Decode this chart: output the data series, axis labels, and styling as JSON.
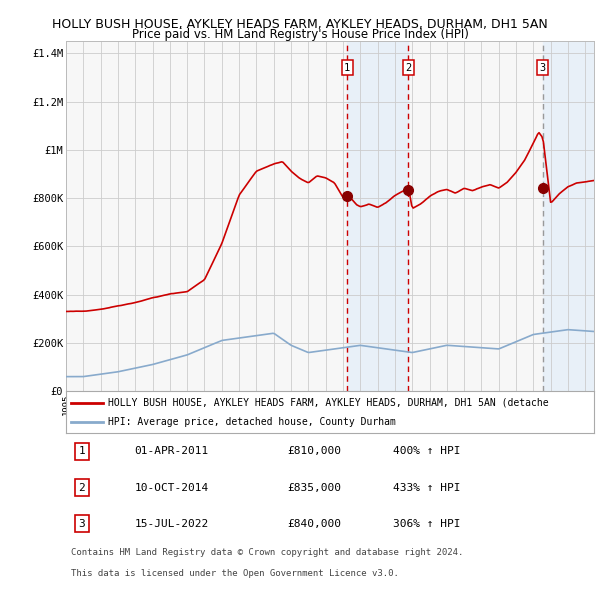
{
  "title1": "HOLLY BUSH HOUSE, AYKLEY HEADS FARM, AYKLEY HEADS, DURHAM, DH1 5AN",
  "title2": "Price paid vs. HM Land Registry's House Price Index (HPI)",
  "ylabel_ticks": [
    "£0",
    "£200K",
    "£400K",
    "£600K",
    "£800K",
    "£1M",
    "£1.2M",
    "£1.4M"
  ],
  "ytick_vals": [
    0,
    200000,
    400000,
    600000,
    800000,
    1000000,
    1200000,
    1400000
  ],
  "ylim": [
    0,
    1450000
  ],
  "xlim_start": 1995.0,
  "xlim_end": 2025.5,
  "legend_line1": "HOLLY BUSH HOUSE, AYKLEY HEADS FARM, AYKLEY HEADS, DURHAM, DH1 5AN (detache",
  "legend_line2": "HPI: Average price, detached house, County Durham",
  "transactions": [
    {
      "label": "1",
      "date_num": 2011.25,
      "price": 810000,
      "pct": "400%",
      "date_str": "01-APR-2011"
    },
    {
      "label": "2",
      "date_num": 2014.77,
      "price": 835000,
      "pct": "433%",
      "date_str": "10-OCT-2014"
    },
    {
      "label": "3",
      "date_num": 2022.54,
      "price": 840000,
      "pct": "306%",
      "date_str": "15-JUL-2022"
    }
  ],
  "footnote1": "Contains HM Land Registry data © Crown copyright and database right 2024.",
  "footnote2": "This data is licensed under the Open Government Licence v3.0.",
  "red_line_color": "#cc0000",
  "blue_line_color": "#88aacc",
  "marker_color": "#880000",
  "box_color": "#cc0000",
  "shade_color": "#e8f0f8",
  "vline12_color": "#cc0000",
  "vline3_color": "#999999",
  "grid_color": "#cccccc",
  "bg_color": "#f7f7f7",
  "title_fontsize": 9,
  "subtitle_fontsize": 8.5
}
